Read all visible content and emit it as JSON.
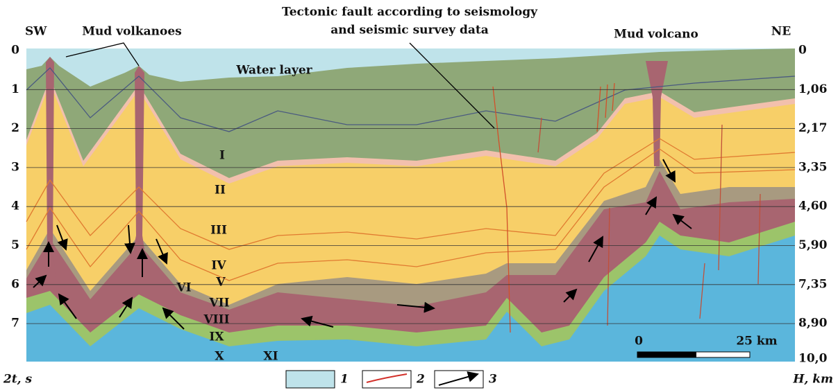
{
  "header": {
    "title_lines": [
      "Tectonic fault according to seismology",
      "and seismic survey data"
    ]
  },
  "labels": {
    "sw": "SW",
    "ne": "NE",
    "mud_volkanoes": "Mud volkanoes",
    "mud_volcano": "Mud volcano",
    "water_layer": "Water layer"
  },
  "left_axis": {
    "title": "2t, s",
    "ticks": [
      "0",
      "1",
      "2",
      "3",
      "4",
      "5",
      "6",
      "7"
    ]
  },
  "right_axis": {
    "title": "H, km",
    "ticks": [
      "0",
      "1,06",
      "2,17",
      "3,35",
      "4,60",
      "5,90",
      "7,35",
      "8,90",
      "10,0"
    ]
  },
  "layers": [
    "I",
    "II",
    "III",
    "IV",
    "V",
    "VI",
    "VII",
    "VIII",
    "IX",
    "X",
    "XI"
  ],
  "scale": {
    "start": "0",
    "end": "25 km"
  },
  "legend": [
    "1",
    "2",
    "3"
  ]
}
